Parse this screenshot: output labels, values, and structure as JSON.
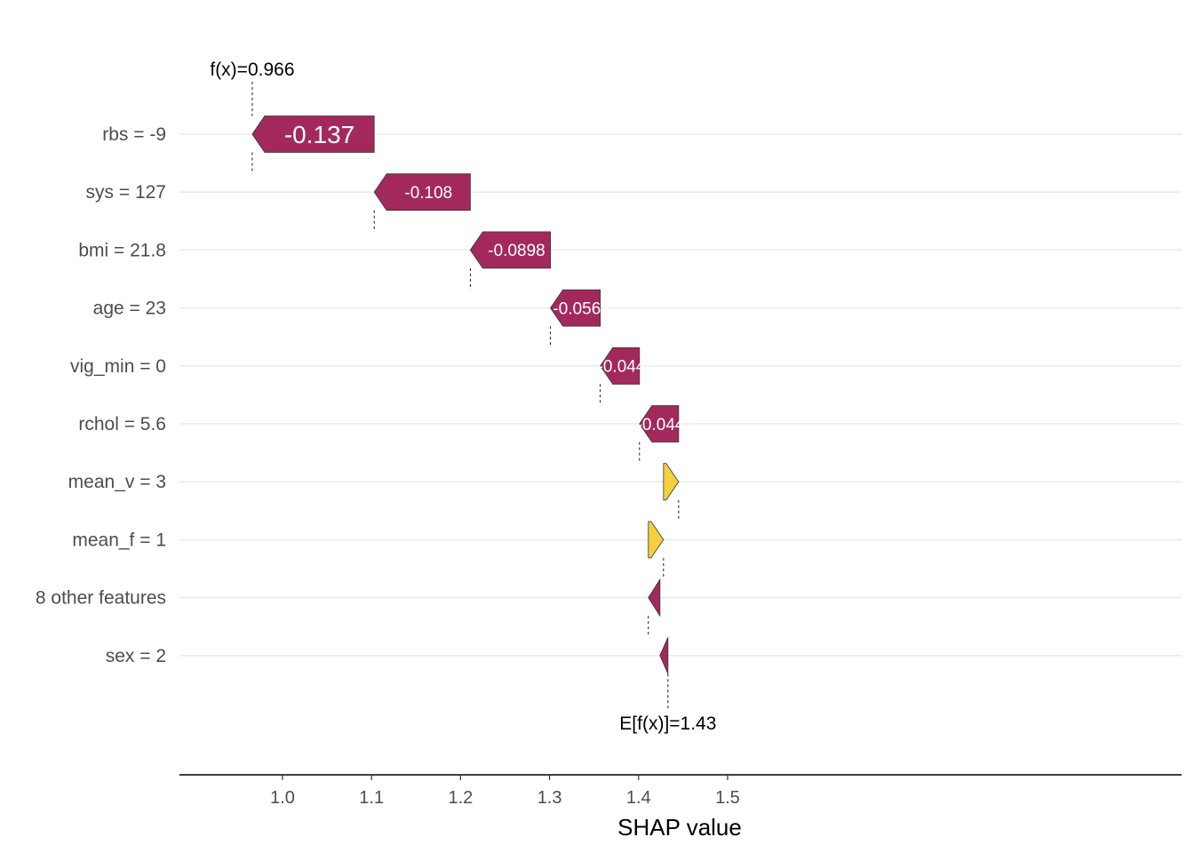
{
  "chart_data": {
    "type": "waterfall",
    "title": "",
    "xlabel": "SHAP value",
    "ylabel": "",
    "xlim": [
      0.94,
      1.505
    ],
    "xticks": [
      1.0,
      1.1,
      1.2,
      1.3,
      1.4,
      1.5
    ],
    "xtick_labels": [
      "1.0",
      "1.1",
      "1.2",
      "1.3",
      "1.4",
      "1.5"
    ],
    "grid": "horizontal",
    "colors": {
      "negative": "#a3295d",
      "positive": "#f5cf40"
    },
    "fx_label": "f(x)=0.966",
    "fx_value": 0.966,
    "efx_label": "E[f(x)]=1.43",
    "efx_value": 1.433,
    "features": [
      {
        "label": "rbs = -9",
        "start": 1.103,
        "end": 0.966,
        "text": "-0.137"
      },
      {
        "label": "sys = 127",
        "start": 1.211,
        "end": 1.103,
        "text": "-0.108"
      },
      {
        "label": "bmi = 21.8",
        "start": 1.301,
        "end": 1.211,
        "text": "-0.0898"
      },
      {
        "label": "age = 23",
        "start": 1.357,
        "end": 1.301,
        "text": "-0.0562"
      },
      {
        "label": "vig_min = 0",
        "start": 1.401,
        "end": 1.357,
        "text": "-0.0444"
      },
      {
        "label": "rchol = 5.6",
        "start": 1.445,
        "end": 1.401,
        "text": "-0.0442"
      },
      {
        "label": "mean_v = 3",
        "start": 1.428,
        "end": 1.445,
        "text": ""
      },
      {
        "label": "mean_f = 1",
        "start": 1.411,
        "end": 1.428,
        "text": ""
      },
      {
        "label": "8 other features",
        "start": 1.424,
        "end": 1.411,
        "text": ""
      },
      {
        "label": "sex = 2",
        "start": 1.433,
        "end": 1.424,
        "text": ""
      }
    ]
  }
}
